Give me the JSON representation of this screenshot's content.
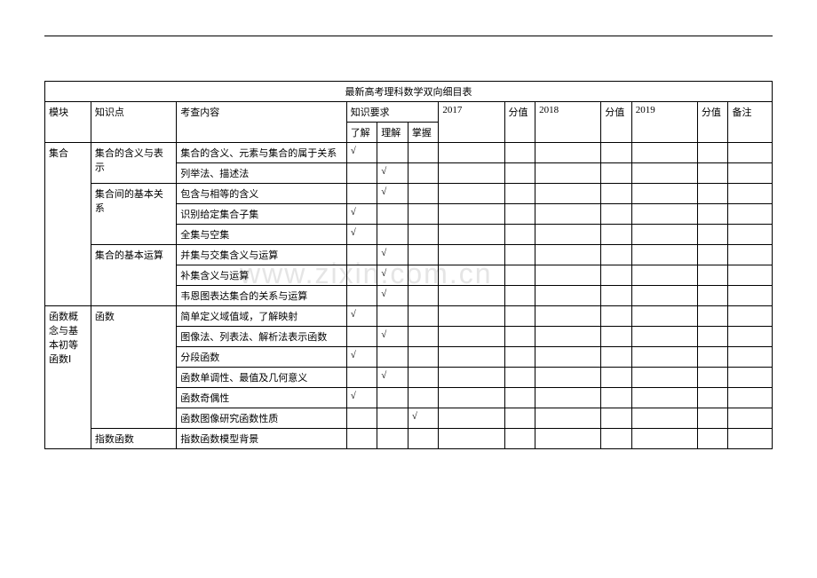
{
  "title": "最新高考理科数学双向细目表",
  "watermark": "www.zixin.com.cn",
  "headers": {
    "module": "模块",
    "topic": "知识点",
    "content": "考查内容",
    "requirement": "知识要求",
    "req_know": "了解",
    "req_understand": "理解",
    "req_master": "掌握",
    "year2017": "2017",
    "score1": "分值",
    "year2018": "2018",
    "score2": "分值",
    "year2019": "2019",
    "score3": "分值",
    "note": "备注"
  },
  "modules": {
    "m1": "集合",
    "m2": "函数概念与基本初等函数Ⅰ"
  },
  "topics": {
    "t1": "集合的含义与表示",
    "t2": "集合间的基本关系",
    "t3": "集合的基本运算",
    "t4": "函数",
    "t5": "指数函数"
  },
  "rows": {
    "r1": {
      "content": "集合的含义、元素与集合的属于关系",
      "know": "√",
      "understand": "",
      "master": ""
    },
    "r2": {
      "content": "列举法、描述法",
      "know": "",
      "understand": "√",
      "master": ""
    },
    "r3": {
      "content": "包含与相等的含义",
      "know": "",
      "understand": "√",
      "master": ""
    },
    "r4": {
      "content": "识别给定集合子集",
      "know": "√",
      "understand": "",
      "master": ""
    },
    "r5": {
      "content": "全集与空集",
      "know": "√",
      "understand": "",
      "master": ""
    },
    "r6": {
      "content": "并集与交集含义与运算",
      "know": "",
      "understand": "√",
      "master": ""
    },
    "r7": {
      "content": "补集含义与运算",
      "know": "",
      "understand": "√",
      "master": ""
    },
    "r8": {
      "content": "韦恩图表达集合的关系与运算",
      "know": "",
      "understand": "√",
      "master": ""
    },
    "r9": {
      "content": "简单定义域值域，了解映射",
      "know": "√",
      "understand": "",
      "master": ""
    },
    "r10": {
      "content": "图像法、列表法、解析法表示函数",
      "know": "",
      "understand": "√",
      "master": ""
    },
    "r11": {
      "content": "分段函数",
      "know": "√",
      "understand": "",
      "master": ""
    },
    "r12": {
      "content": "函数单调性、最值及几何意义",
      "know": "",
      "understand": "√",
      "master": ""
    },
    "r13": {
      "content": "函数奇偶性",
      "know": "√",
      "understand": "",
      "master": ""
    },
    "r14": {
      "content": "函数图像研究函数性质",
      "know": "",
      "understand": "",
      "master": "√"
    },
    "r15": {
      "content": "指数函数模型背景",
      "know": "",
      "understand": "",
      "master": ""
    }
  }
}
